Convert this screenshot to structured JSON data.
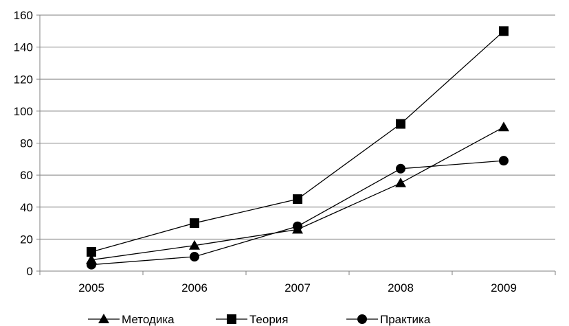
{
  "chart_data": {
    "type": "line",
    "categories": [
      "2005",
      "2006",
      "2007",
      "2008",
      "2009"
    ],
    "series": [
      {
        "name": "Методика",
        "marker": "triangle",
        "values": [
          7,
          16,
          26,
          55,
          90
        ]
      },
      {
        "name": "Теория",
        "marker": "square",
        "values": [
          12,
          30,
          45,
          92,
          150
        ]
      },
      {
        "name": "Практика",
        "marker": "circle",
        "values": [
          4,
          9,
          28,
          64,
          69
        ]
      }
    ],
    "ylim": [
      0,
      160
    ],
    "yticks": [
      0,
      20,
      40,
      60,
      80,
      100,
      120,
      140,
      160
    ],
    "grid": "horizontal",
    "legend": "bottom",
    "line_color": "#000000",
    "grid_color": "#7f7f7f"
  }
}
